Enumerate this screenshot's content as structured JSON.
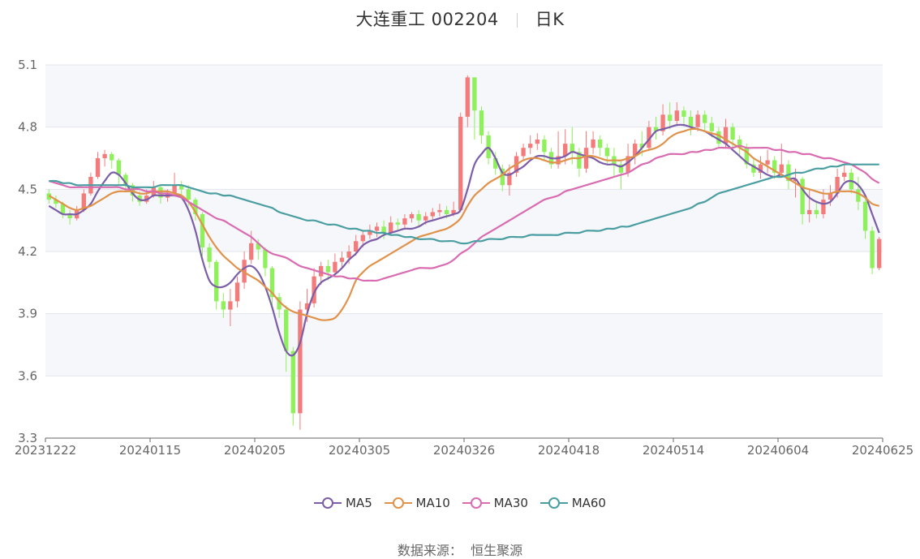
{
  "header": {
    "stock_name": "大连重工 002204",
    "period": "日K"
  },
  "legend": [
    {
      "name": "MA5",
      "color": "#7b5ea7"
    },
    {
      "name": "MA10",
      "color": "#e0924a"
    },
    {
      "name": "MA30",
      "color": "#d96bb1"
    },
    {
      "name": "MA60",
      "color": "#4a9ea1"
    }
  ],
  "source": {
    "label": "数据来源：",
    "name": "恒生聚源"
  },
  "colors": {
    "up": "#f47b7b",
    "down": "#8ef05a",
    "grid": "#e2e5ee",
    "band": "#f6f7fb"
  },
  "chart_data": {
    "type": "candlestick",
    "title": "大连重工 002204 日K",
    "y_ticks": [
      "3.3",
      "3.6",
      "3.9",
      "4.2",
      "4.5",
      "4.8",
      "5.1"
    ],
    "ylim": [
      3.3,
      5.1
    ],
    "x_ticks": [
      "20231222",
      "20240115",
      "20240205",
      "20240305",
      "20240326",
      "20240418",
      "20240514",
      "20240604",
      "20240625"
    ],
    "num_days": 120,
    "candles": [
      [
        4.48,
        4.45,
        4.5,
        4.43
      ],
      [
        4.45,
        4.43,
        4.47,
        4.41
      ],
      [
        4.43,
        4.38,
        4.44,
        4.36
      ],
      [
        4.38,
        4.36,
        4.4,
        4.33
      ],
      [
        4.36,
        4.4,
        4.42,
        4.35
      ],
      [
        4.4,
        4.48,
        4.5,
        4.39
      ],
      [
        4.48,
        4.56,
        4.58,
        4.47
      ],
      [
        4.56,
        4.65,
        4.68,
        4.55
      ],
      [
        4.65,
        4.67,
        4.69,
        4.61
      ],
      [
        4.67,
        4.64,
        4.68,
        4.6
      ],
      [
        4.64,
        4.57,
        4.65,
        4.52
      ],
      [
        4.57,
        4.52,
        4.58,
        4.49
      ],
      [
        4.52,
        4.47,
        4.53,
        4.44
      ],
      [
        4.47,
        4.44,
        4.49,
        4.42
      ],
      [
        4.44,
        4.47,
        4.5,
        4.43
      ],
      [
        4.47,
        4.51,
        4.54,
        4.46
      ],
      [
        4.51,
        4.46,
        4.52,
        4.43
      ],
      [
        4.46,
        4.48,
        4.5,
        4.44
      ],
      [
        4.48,
        4.52,
        4.58,
        4.47
      ],
      [
        4.52,
        4.5,
        4.54,
        4.47
      ],
      [
        4.5,
        4.45,
        4.52,
        4.42
      ],
      [
        4.45,
        4.38,
        4.46,
        4.35
      ],
      [
        4.38,
        4.22,
        4.39,
        4.18
      ],
      [
        4.22,
        4.15,
        4.24,
        4.12
      ],
      [
        4.15,
        3.96,
        4.16,
        3.92
      ],
      [
        3.96,
        3.92,
        4.0,
        3.88
      ],
      [
        3.92,
        3.96,
        4.02,
        3.84
      ],
      [
        3.96,
        4.05,
        4.08,
        3.93
      ],
      [
        4.05,
        4.16,
        4.2,
        4.02
      ],
      [
        4.16,
        4.24,
        4.3,
        4.14
      ],
      [
        4.24,
        4.21,
        4.26,
        4.16
      ],
      [
        4.21,
        4.12,
        4.22,
        4.08
      ],
      [
        4.12,
        3.98,
        4.13,
        3.94
      ],
      [
        3.98,
        3.92,
        4.0,
        3.88
      ],
      [
        3.92,
        3.72,
        3.94,
        3.62
      ],
      [
        3.72,
        3.42,
        3.74,
        3.36
      ],
      [
        3.42,
        3.92,
        3.96,
        3.34
      ],
      [
        3.92,
        3.95,
        4.02,
        3.86
      ],
      [
        3.95,
        4.08,
        4.12,
        3.93
      ],
      [
        4.08,
        4.13,
        4.15,
        4.04
      ],
      [
        4.13,
        4.1,
        4.16,
        4.06
      ],
      [
        4.1,
        4.15,
        4.19,
        4.08
      ],
      [
        4.15,
        4.17,
        4.2,
        4.12
      ],
      [
        4.17,
        4.2,
        4.23,
        4.14
      ],
      [
        4.2,
        4.25,
        4.28,
        4.18
      ],
      [
        4.25,
        4.28,
        4.3,
        4.22
      ],
      [
        4.28,
        4.3,
        4.33,
        4.26
      ],
      [
        4.3,
        4.32,
        4.34,
        4.27
      ],
      [
        4.32,
        4.29,
        4.35,
        4.26
      ],
      [
        4.29,
        4.34,
        4.37,
        4.28
      ],
      [
        4.34,
        4.33,
        4.36,
        4.3
      ],
      [
        4.33,
        4.36,
        4.38,
        4.31
      ],
      [
        4.36,
        4.38,
        4.39,
        4.34
      ],
      [
        4.38,
        4.35,
        4.4,
        4.32
      ],
      [
        4.35,
        4.37,
        4.39,
        4.33
      ],
      [
        4.37,
        4.39,
        4.41,
        4.35
      ],
      [
        4.39,
        4.4,
        4.43,
        4.37
      ],
      [
        4.4,
        4.38,
        4.42,
        4.36
      ],
      [
        4.38,
        4.4,
        4.44,
        4.37
      ],
      [
        4.4,
        4.85,
        4.87,
        4.39
      ],
      [
        4.85,
        5.04,
        5.05,
        4.8
      ],
      [
        5.04,
        4.88,
        4.95,
        4.74
      ],
      [
        4.88,
        4.76,
        4.9,
        4.72
      ],
      [
        4.76,
        4.65,
        4.78,
        4.62
      ],
      [
        4.65,
        4.6,
        4.68,
        4.57
      ],
      [
        4.6,
        4.52,
        4.62,
        4.49
      ],
      [
        4.52,
        4.58,
        4.62,
        4.47
      ],
      [
        4.58,
        4.66,
        4.68,
        4.56
      ],
      [
        4.66,
        4.7,
        4.72,
        4.64
      ],
      [
        4.7,
        4.72,
        4.76,
        4.67
      ],
      [
        4.72,
        4.74,
        4.77,
        4.69
      ],
      [
        4.74,
        4.68,
        4.76,
        4.64
      ],
      [
        4.68,
        4.62,
        4.7,
        4.6
      ],
      [
        4.62,
        4.66,
        4.78,
        4.6
      ],
      [
        4.66,
        4.72,
        4.79,
        4.62
      ],
      [
        4.72,
        4.68,
        4.8,
        4.62
      ],
      [
        4.68,
        4.6,
        4.7,
        4.56
      ],
      [
        4.6,
        4.7,
        4.78,
        4.58
      ],
      [
        4.7,
        4.74,
        4.78,
        4.67
      ],
      [
        4.74,
        4.7,
        4.76,
        4.66
      ],
      [
        4.7,
        4.66,
        4.72,
        4.62
      ],
      [
        4.66,
        4.62,
        4.7,
        4.56
      ],
      [
        4.62,
        4.58,
        4.64,
        4.5
      ],
      [
        4.58,
        4.66,
        4.72,
        4.56
      ],
      [
        4.66,
        4.72,
        4.74,
        4.62
      ],
      [
        4.72,
        4.7,
        4.78,
        4.66
      ],
      [
        4.7,
        4.8,
        4.83,
        4.69
      ],
      [
        4.8,
        4.78,
        4.85,
        4.74
      ],
      [
        4.78,
        4.86,
        4.91,
        4.76
      ],
      [
        4.86,
        4.83,
        4.92,
        4.79
      ],
      [
        4.83,
        4.88,
        4.92,
        4.81
      ],
      [
        4.88,
        4.85,
        4.9,
        4.81
      ],
      [
        4.85,
        4.8,
        4.88,
        4.76
      ],
      [
        4.8,
        4.86,
        4.88,
        4.78
      ],
      [
        4.86,
        4.82,
        4.88,
        4.78
      ],
      [
        4.82,
        4.78,
        4.85,
        4.75
      ],
      [
        4.78,
        4.72,
        4.8,
        4.7
      ],
      [
        4.72,
        4.8,
        4.84,
        4.7
      ],
      [
        4.8,
        4.74,
        4.82,
        4.7
      ],
      [
        4.74,
        4.7,
        4.76,
        4.66
      ],
      [
        4.7,
        4.62,
        4.72,
        4.6
      ],
      [
        4.62,
        4.58,
        4.65,
        4.56
      ],
      [
        4.58,
        4.62,
        4.66,
        4.55
      ],
      [
        4.62,
        4.64,
        4.69,
        4.58
      ],
      [
        4.64,
        4.58,
        4.66,
        4.55
      ],
      [
        4.58,
        4.62,
        4.72,
        4.56
      ],
      [
        4.62,
        4.54,
        4.64,
        4.5
      ],
      [
        4.54,
        4.55,
        4.6,
        4.46
      ],
      [
        4.55,
        4.38,
        4.56,
        4.33
      ],
      [
        4.38,
        4.4,
        4.5,
        4.34
      ],
      [
        4.4,
        4.38,
        4.44,
        4.36
      ],
      [
        4.38,
        4.45,
        4.5,
        4.36
      ],
      [
        4.45,
        4.48,
        4.52,
        4.42
      ],
      [
        4.48,
        4.56,
        4.6,
        4.46
      ],
      [
        4.56,
        4.58,
        4.62,
        4.54
      ],
      [
        4.58,
        4.5,
        4.6,
        4.48
      ],
      [
        4.5,
        4.44,
        4.56,
        4.4
      ],
      [
        4.44,
        4.3,
        4.46,
        4.26
      ],
      [
        4.3,
        4.12,
        4.32,
        4.09
      ],
      [
        4.12,
        4.26,
        4.27,
        4.11
      ]
    ],
    "series": [
      {
        "name": "MA5",
        "color": "#7b5ea7",
        "values": [
          4.42,
          4.4,
          4.38,
          4.38,
          4.38,
          4.4,
          4.43,
          4.49,
          4.54,
          4.58,
          4.57,
          4.53,
          4.48,
          4.45,
          4.45,
          4.47,
          4.47,
          4.47,
          4.47,
          4.46,
          4.4,
          4.3,
          4.16,
          4.06,
          4.03,
          4.03,
          4.05,
          4.09,
          4.12,
          4.13,
          4.1,
          4.03,
          3.93,
          3.81,
          3.72,
          3.7,
          3.76,
          3.9,
          4.0,
          4.05,
          4.07,
          4.09,
          4.12,
          4.16,
          4.19,
          4.23,
          4.25,
          4.26,
          4.28,
          4.29,
          4.3,
          4.31,
          4.31,
          4.32,
          4.34,
          4.35,
          4.36,
          4.37,
          4.38,
          4.4,
          4.5,
          4.62,
          4.67,
          4.7,
          4.65,
          4.58,
          4.57,
          4.59,
          4.61,
          4.64,
          4.66,
          4.66,
          4.65,
          4.65,
          4.66,
          4.68,
          4.67,
          4.66,
          4.65,
          4.63,
          4.62,
          4.62,
          4.61,
          4.63,
          4.66,
          4.7,
          4.74,
          4.78,
          4.79,
          4.8,
          4.81,
          4.81,
          4.8,
          4.79,
          4.78,
          4.76,
          4.74,
          4.72,
          4.69,
          4.66,
          4.63,
          4.61,
          4.59,
          4.57,
          4.56,
          4.57,
          4.55,
          4.55,
          4.5,
          4.46,
          4.44,
          4.43,
          4.44,
          4.48,
          4.53,
          4.54,
          4.52,
          4.47,
          4.38,
          4.29
        ]
      },
      {
        "name": "MA10",
        "color": "#e0924a",
        "values": [
          4.47,
          4.45,
          4.43,
          4.41,
          4.4,
          4.41,
          4.42,
          4.44,
          4.46,
          4.48,
          4.49,
          4.49,
          4.49,
          4.48,
          4.48,
          4.49,
          4.49,
          4.49,
          4.48,
          4.47,
          4.44,
          4.39,
          4.33,
          4.27,
          4.22,
          4.18,
          4.15,
          4.12,
          4.1,
          4.08,
          4.06,
          4.03,
          4.0,
          3.96,
          3.93,
          3.91,
          3.9,
          3.89,
          3.88,
          3.87,
          3.87,
          3.88,
          3.92,
          3.98,
          4.06,
          4.1,
          4.13,
          4.15,
          4.17,
          4.19,
          4.21,
          4.23,
          4.25,
          4.27,
          4.28,
          4.29,
          4.3,
          4.31,
          4.33,
          4.36,
          4.42,
          4.47,
          4.5,
          4.53,
          4.55,
          4.57,
          4.6,
          4.62,
          4.64,
          4.65,
          4.65,
          4.64,
          4.63,
          4.63,
          4.64,
          4.65,
          4.65,
          4.66,
          4.66,
          4.65,
          4.64,
          4.64,
          4.64,
          4.65,
          4.66,
          4.68,
          4.69,
          4.7,
          4.72,
          4.75,
          4.77,
          4.78,
          4.79,
          4.79,
          4.78,
          4.77,
          4.76,
          4.74,
          4.72,
          4.7,
          4.68,
          4.65,
          4.63,
          4.61,
          4.59,
          4.57,
          4.55,
          4.53,
          4.51,
          4.5,
          4.49,
          4.48,
          4.48,
          4.49,
          4.49,
          4.49,
          4.48,
          4.46,
          4.43,
          4.42
        ]
      },
      {
        "name": "MA30",
        "color": "#d96bb1",
        "values": [
          4.54,
          4.53,
          4.52,
          4.51,
          4.51,
          4.51,
          4.51,
          4.51,
          4.51,
          4.51,
          4.51,
          4.5,
          4.5,
          4.5,
          4.49,
          4.49,
          4.48,
          4.48,
          4.47,
          4.46,
          4.44,
          4.42,
          4.4,
          4.38,
          4.36,
          4.35,
          4.33,
          4.31,
          4.29,
          4.27,
          4.24,
          4.21,
          4.19,
          4.18,
          4.17,
          4.15,
          4.13,
          4.12,
          4.11,
          4.1,
          4.09,
          4.08,
          4.08,
          4.07,
          4.07,
          4.06,
          4.06,
          4.06,
          4.07,
          4.08,
          4.09,
          4.1,
          4.11,
          4.12,
          4.12,
          4.12,
          4.13,
          4.14,
          4.16,
          4.19,
          4.21,
          4.24,
          4.27,
          4.29,
          4.31,
          4.33,
          4.35,
          4.37,
          4.39,
          4.41,
          4.43,
          4.45,
          4.46,
          4.47,
          4.49,
          4.5,
          4.51,
          4.52,
          4.53,
          4.54,
          4.55,
          4.56,
          4.57,
          4.58,
          4.6,
          4.62,
          4.63,
          4.65,
          4.66,
          4.67,
          4.67,
          4.67,
          4.68,
          4.68,
          4.69,
          4.69,
          4.7,
          4.7,
          4.7,
          4.71,
          4.7,
          4.7,
          4.7,
          4.7,
          4.69,
          4.69,
          4.68,
          4.68,
          4.67,
          4.67,
          4.66,
          4.65,
          4.65,
          4.64,
          4.63,
          4.62,
          4.6,
          4.58,
          4.55,
          4.53
        ]
      },
      {
        "name": "MA60",
        "color": "#4a9ea1",
        "values": [
          4.54,
          4.54,
          4.53,
          4.53,
          4.52,
          4.52,
          4.52,
          4.52,
          4.52,
          4.52,
          4.52,
          4.52,
          4.51,
          4.51,
          4.51,
          4.51,
          4.52,
          4.52,
          4.52,
          4.52,
          4.51,
          4.5,
          4.49,
          4.48,
          4.48,
          4.47,
          4.47,
          4.46,
          4.45,
          4.44,
          4.43,
          4.42,
          4.41,
          4.39,
          4.38,
          4.37,
          4.36,
          4.35,
          4.35,
          4.34,
          4.33,
          4.33,
          4.32,
          4.31,
          4.31,
          4.3,
          4.3,
          4.29,
          4.29,
          4.28,
          4.28,
          4.27,
          4.27,
          4.26,
          4.26,
          4.26,
          4.25,
          4.25,
          4.25,
          4.24,
          4.24,
          4.25,
          4.25,
          4.26,
          4.26,
          4.26,
          4.27,
          4.27,
          4.27,
          4.28,
          4.28,
          4.28,
          4.28,
          4.28,
          4.29,
          4.29,
          4.29,
          4.3,
          4.3,
          4.3,
          4.31,
          4.31,
          4.32,
          4.32,
          4.33,
          4.34,
          4.35,
          4.36,
          4.37,
          4.38,
          4.39,
          4.4,
          4.41,
          4.43,
          4.44,
          4.46,
          4.48,
          4.49,
          4.5,
          4.51,
          4.52,
          4.53,
          4.54,
          4.55,
          4.56,
          4.56,
          4.57,
          4.58,
          4.58,
          4.59,
          4.6,
          4.6,
          4.61,
          4.61,
          4.62,
          4.62,
          4.62,
          4.62,
          4.62,
          4.62
        ]
      }
    ]
  }
}
